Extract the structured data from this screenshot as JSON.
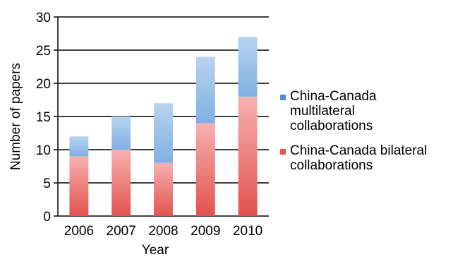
{
  "chart_data": {
    "type": "bar",
    "stacked": true,
    "categories": [
      "2006",
      "2007",
      "2008",
      "2009",
      "2010"
    ],
    "series": [
      {
        "name_lines": [
          "China-Canada bilateral",
          "collaborations"
        ],
        "values": [
          9,
          10,
          8,
          14,
          18
        ],
        "color_top": "#f7b1b1",
        "color_bottom": "#e2524e",
        "legend_color": "#e8534f"
      },
      {
        "name_lines": [
          "China-Canada",
          "multilateral",
          "collaborations"
        ],
        "values": [
          3,
          5,
          9,
          10,
          9
        ],
        "color_top": "#b9d3ef",
        "color_bottom": "#7fb0e3",
        "legend_color": "#4a90d9"
      }
    ],
    "title": "",
    "xlabel": "Year",
    "ylabel": "Number of papers",
    "ylim": [
      0,
      30
    ],
    "yticks": [
      "0",
      "5",
      "10",
      "15",
      "20",
      "25",
      "30"
    ],
    "grid": true,
    "legend_position": "right"
  }
}
